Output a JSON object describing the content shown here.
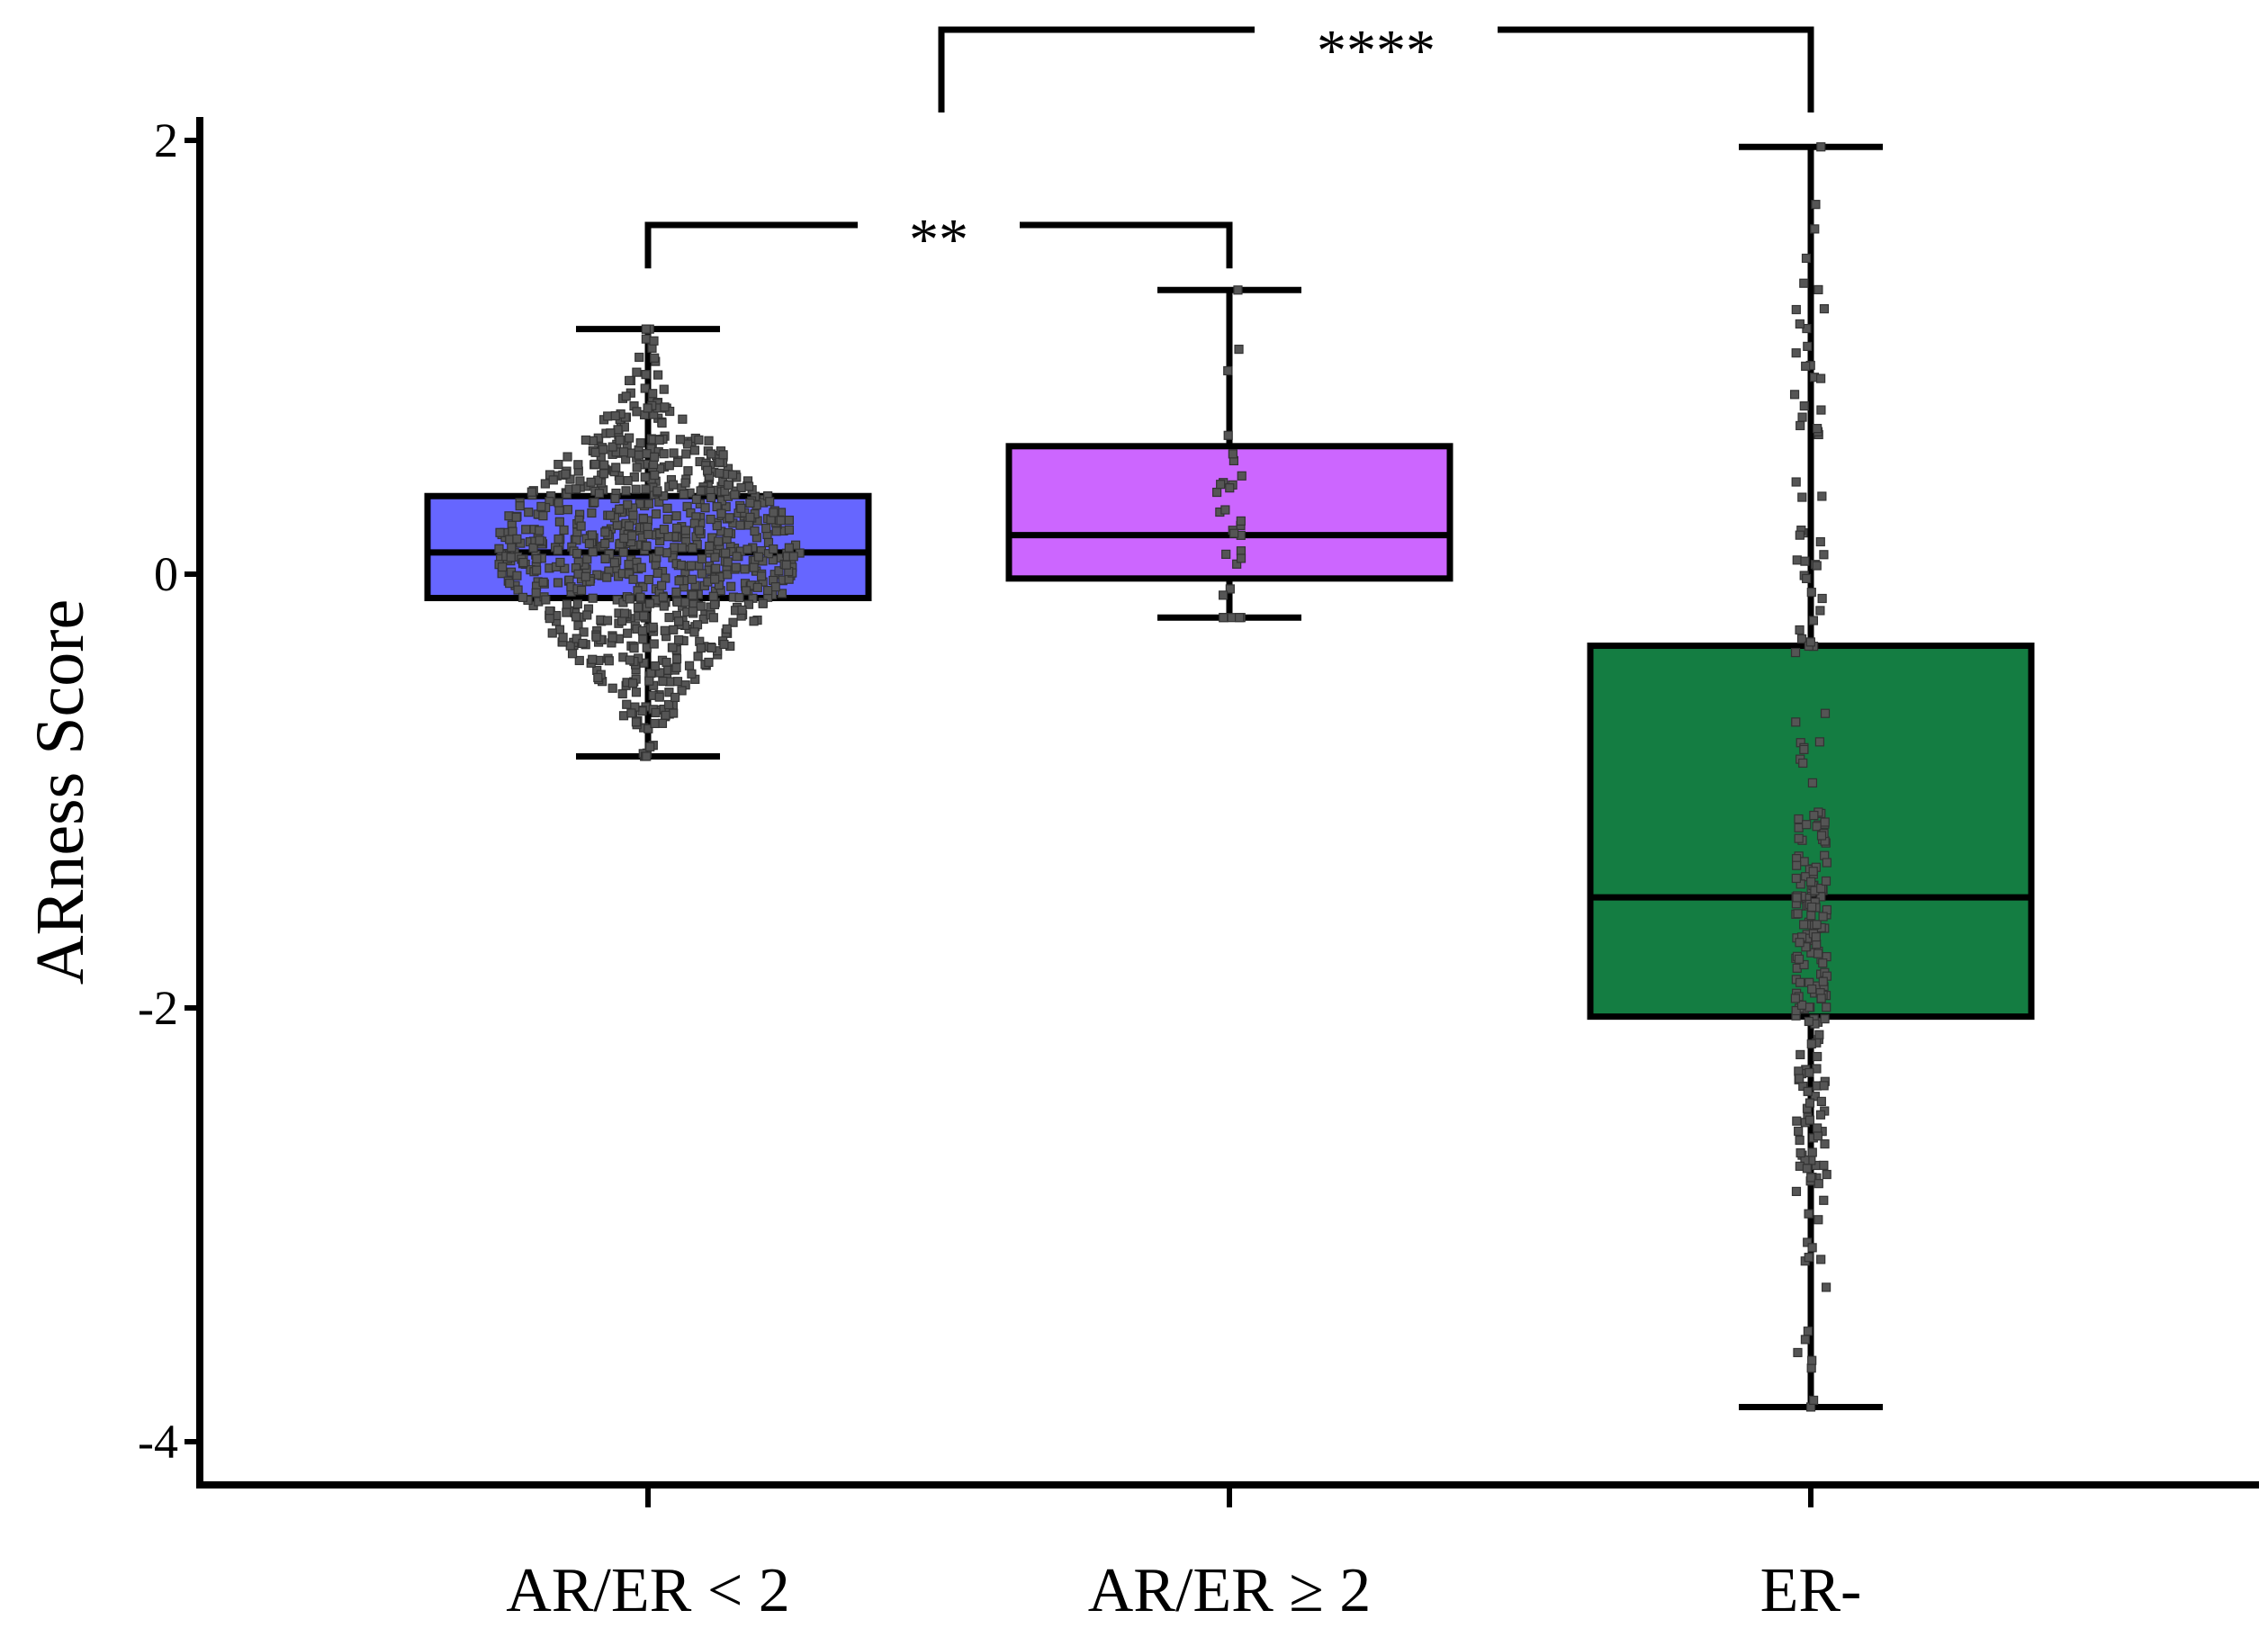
{
  "chart_data": {
    "type": "box",
    "xlabel": "",
    "ylabel": "ARness Score",
    "ylim": [
      -4.15,
      2.05
    ],
    "yticks": [
      2,
      0,
      -2,
      -4
    ],
    "ytick_labels": [
      "2",
      "0",
      "-2",
      "-4"
    ],
    "categories": [
      "AR/ER < 2",
      "AR/ER ≥ 2",
      "ER-"
    ],
    "grid": false,
    "boxes": [
      {
        "category": "AR/ER < 2",
        "color": "#6666ff",
        "whisker_low": -0.84,
        "q1": -0.11,
        "median": 0.1,
        "q3": 0.36,
        "whisker_high": 1.13,
        "n_points_approx": 900
      },
      {
        "category": "AR/ER ≥ 2",
        "color": "#cc66ff",
        "whisker_low": -0.2,
        "q1": -0.02,
        "median": 0.18,
        "q3": 0.59,
        "whisker_high": 1.31,
        "n_points_approx": 30
      },
      {
        "category": "ER-",
        "color": "#147d42",
        "whisker_low": -3.84,
        "q1": -2.04,
        "median": -1.49,
        "q3": -0.33,
        "whisker_high": 1.97,
        "n_points_approx": 250
      }
    ],
    "point_color": "#555555",
    "significance": [
      {
        "from": "AR/ER < 2",
        "to": "AR/ER ≥ 2",
        "label": "**",
        "level": 1.61
      },
      {
        "from": "AR/ER < 2 / AR/ER ≥ 2 midpoint",
        "to": "ER-",
        "label": "****",
        "level": 2.5
      }
    ]
  }
}
